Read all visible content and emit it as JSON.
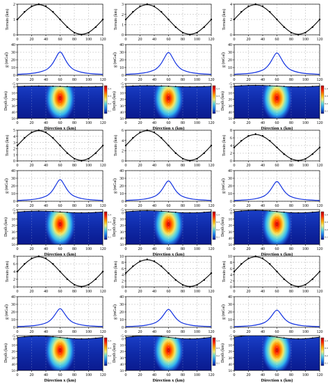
{
  "chart_data": {
    "type": "line",
    "terrain_ylabel": "Terrain  (km)",
    "gravity_ylabel": "g (mGal)",
    "depth_ylabel": "Depth (km)",
    "xlabel": "Direction x (km)",
    "x_ticks": [
      "0",
      "20",
      "40",
      "60",
      "80",
      "100",
      "120"
    ],
    "xlim": [
      0,
      120
    ],
    "gravity_ticks": [
      "0",
      "10",
      "20",
      "30",
      "40"
    ],
    "gravity_ylim": [
      0,
      40
    ],
    "depth_ticks": [
      "-5",
      "0",
      "10",
      "20",
      "30",
      "40",
      "50"
    ],
    "depth_ylim": [
      -5,
      50
    ],
    "colorbar_ticks": [
      "0.4",
      "0.3",
      "0.2",
      "0.1"
    ],
    "colors": {
      "terrain_line": "#000000",
      "gravity_line": "#1030e0",
      "density_low": "#0a1a8f",
      "density_high": "#cc0000",
      "grid": "#b0b0b0"
    },
    "panels": [
      {
        "amplitude": 1,
        "terrain_ylim": [
          0,
          2
        ],
        "terrain_ticks": [
          "0",
          "1",
          "2"
        ],
        "terrain": {
          "x": [
            0,
            10,
            20,
            30,
            40,
            50,
            60,
            70,
            80,
            90,
            100,
            110,
            120
          ],
          "y": [
            1.0,
            1.5,
            1.87,
            2.0,
            1.87,
            1.5,
            1.0,
            0.5,
            0.13,
            0.0,
            0.13,
            0.5,
            1.0
          ]
        },
        "gravity": {
          "x": [
            0,
            10,
            20,
            30,
            40,
            45,
            50,
            55,
            58,
            60,
            62,
            65,
            70,
            75,
            80,
            90,
            100,
            110,
            120
          ],
          "y": [
            1.2,
            1.6,
            2.3,
            3.6,
            6.7,
            10.0,
            15.7,
            24.4,
            29.4,
            30.5,
            29.4,
            24.4,
            15.7,
            10.0,
            6.7,
            3.6,
            2.3,
            1.6,
            1.2
          ]
        }
      },
      {
        "amplitude": 1.5,
        "terrain_ylim": [
          0,
          3
        ],
        "terrain_ticks": [
          "0",
          "1",
          "2",
          "3"
        ],
        "terrain": {
          "x": [
            0,
            10,
            20,
            30,
            40,
            50,
            60,
            70,
            80,
            90,
            100,
            110,
            120
          ],
          "y": [
            1.5,
            2.25,
            2.8,
            3.0,
            2.8,
            2.25,
            1.5,
            0.75,
            0.2,
            0.0,
            0.2,
            0.75,
            1.5
          ]
        },
        "gravity": {
          "x": [
            0,
            10,
            20,
            30,
            40,
            45,
            50,
            55,
            58,
            60,
            62,
            65,
            70,
            75,
            80,
            90,
            100,
            110,
            120
          ],
          "y": [
            1.2,
            1.6,
            2.3,
            3.6,
            6.6,
            9.8,
            15.4,
            23.9,
            28.8,
            29.9,
            28.8,
            23.9,
            15.4,
            9.8,
            6.6,
            3.6,
            2.3,
            1.6,
            1.2
          ]
        }
      },
      {
        "amplitude": 2,
        "terrain_ylim": [
          0,
          4
        ],
        "terrain_ticks": [
          "0",
          "2",
          "4"
        ],
        "terrain": {
          "x": [
            0,
            10,
            20,
            30,
            40,
            50,
            60,
            70,
            80,
            90,
            100,
            110,
            120
          ],
          "y": [
            2.0,
            3.0,
            3.73,
            4.0,
            3.73,
            3.0,
            2.0,
            1.0,
            0.27,
            0.0,
            0.27,
            1.0,
            2.0
          ]
        },
        "gravity": {
          "x": [
            0,
            10,
            20,
            30,
            40,
            45,
            50,
            55,
            58,
            60,
            62,
            65,
            70,
            75,
            80,
            90,
            100,
            110,
            120
          ],
          "y": [
            1.2,
            1.6,
            2.2,
            3.5,
            6.5,
            9.6,
            15.1,
            23.4,
            28.2,
            29.3,
            28.2,
            23.4,
            15.1,
            9.6,
            6.5,
            3.5,
            2.2,
            1.6,
            1.2
          ]
        }
      },
      {
        "amplitude": 2.5,
        "terrain_ylim": [
          0,
          5
        ],
        "terrain_ticks": [
          "0",
          "1",
          "2",
          "3",
          "4",
          "5"
        ],
        "terrain": {
          "x": [
            0,
            10,
            20,
            30,
            40,
            50,
            60,
            70,
            80,
            90,
            100,
            110,
            120
          ],
          "y": [
            2.5,
            3.75,
            4.67,
            5.0,
            4.67,
            3.75,
            2.5,
            1.25,
            0.33,
            0.0,
            0.33,
            1.25,
            2.5
          ]
        },
        "gravity": {
          "x": [
            0,
            10,
            20,
            30,
            40,
            45,
            50,
            55,
            58,
            60,
            62,
            65,
            70,
            75,
            80,
            90,
            100,
            110,
            120
          ],
          "y": [
            1.1,
            1.5,
            2.2,
            3.4,
            6.3,
            9.3,
            14.6,
            22.7,
            27.3,
            28.4,
            27.3,
            22.7,
            14.6,
            9.3,
            6.3,
            3.4,
            2.2,
            1.5,
            1.1
          ]
        }
      },
      {
        "amplitude": 3,
        "terrain_ylim": [
          0,
          6
        ],
        "terrain_ticks": [
          "0",
          "2",
          "4",
          "6"
        ],
        "terrain": {
          "x": [
            0,
            10,
            20,
            30,
            40,
            50,
            60,
            70,
            80,
            90,
            100,
            110,
            120
          ],
          "y": [
            3.0,
            4.5,
            5.6,
            6.0,
            5.6,
            4.5,
            3.0,
            1.5,
            0.4,
            0.0,
            0.4,
            1.5,
            3.0
          ]
        },
        "gravity": {
          "x": [
            0,
            10,
            20,
            30,
            40,
            45,
            50,
            55,
            58,
            60,
            62,
            65,
            70,
            75,
            80,
            90,
            100,
            110,
            120
          ],
          "y": [
            1.1,
            1.5,
            2.1,
            3.2,
            6.0,
            8.8,
            13.8,
            21.4,
            25.7,
            26.7,
            25.7,
            21.4,
            13.8,
            8.8,
            6.0,
            3.2,
            2.1,
            1.5,
            1.1
          ]
        }
      },
      {
        "amplitude": 3.5,
        "terrain_ylim": [
          0,
          8
        ],
        "terrain_ticks": [
          "0",
          "2",
          "4",
          "6",
          "8"
        ],
        "terrain": {
          "x": [
            0,
            10,
            20,
            30,
            40,
            50,
            60,
            70,
            80,
            90,
            100,
            110,
            120
          ],
          "y": [
            3.5,
            5.25,
            6.53,
            7.0,
            6.53,
            5.25,
            3.5,
            1.75,
            0.47,
            0.0,
            0.47,
            1.75,
            3.5
          ]
        },
        "gravity": {
          "x": [
            0,
            10,
            20,
            30,
            40,
            45,
            50,
            55,
            58,
            60,
            62,
            65,
            70,
            75,
            80,
            90,
            100,
            110,
            120
          ],
          "y": [
            1.0,
            1.4,
            2.0,
            3.1,
            5.7,
            8.5,
            13.3,
            20.7,
            24.9,
            25.9,
            24.9,
            20.7,
            13.3,
            8.5,
            5.7,
            3.1,
            2.0,
            1.4,
            1.0
          ]
        }
      },
      {
        "amplitude": 4,
        "terrain_ylim": [
          0,
          8
        ],
        "terrain_ticks": [
          "0",
          "2",
          "4",
          "6",
          "8"
        ],
        "terrain": {
          "x": [
            0,
            10,
            20,
            30,
            40,
            50,
            60,
            70,
            80,
            90,
            100,
            110,
            120
          ],
          "y": [
            4.0,
            6.0,
            7.46,
            8.0,
            7.46,
            6.0,
            4.0,
            2.0,
            0.54,
            0.0,
            0.54,
            2.0,
            4.0
          ]
        },
        "gravity": {
          "x": [
            0,
            10,
            20,
            30,
            40,
            45,
            50,
            55,
            58,
            60,
            62,
            65,
            70,
            75,
            80,
            90,
            100,
            110,
            120
          ],
          "y": [
            1.0,
            1.3,
            1.9,
            2.9,
            5.4,
            8.0,
            12.6,
            19.6,
            23.5,
            24.5,
            23.5,
            19.6,
            12.6,
            8.0,
            5.4,
            2.9,
            1.9,
            1.3,
            1.0
          ]
        }
      },
      {
        "amplitude": 4.5,
        "terrain_ylim": [
          0,
          10
        ],
        "terrain_ticks": [
          "0",
          "2",
          "4",
          "6",
          "8",
          "10"
        ],
        "terrain": {
          "x": [
            0,
            10,
            20,
            30,
            40,
            50,
            60,
            70,
            80,
            90,
            100,
            110,
            120
          ],
          "y": [
            4.5,
            6.75,
            8.4,
            9.0,
            8.4,
            6.75,
            4.5,
            2.25,
            0.6,
            0.0,
            0.6,
            2.25,
            4.5
          ]
        },
        "gravity": {
          "x": [
            0,
            10,
            20,
            30,
            40,
            45,
            50,
            55,
            58,
            60,
            62,
            65,
            70,
            75,
            80,
            90,
            100,
            110,
            120
          ],
          "y": [
            0.9,
            1.3,
            1.8,
            2.8,
            5.2,
            7.7,
            12.1,
            18.8,
            22.6,
            23.5,
            22.6,
            18.8,
            12.1,
            7.7,
            5.2,
            2.8,
            1.8,
            1.3,
            0.9
          ]
        }
      },
      {
        "amplitude": 5,
        "terrain_ylim": [
          0,
          10
        ],
        "terrain_ticks": [
          "0",
          "2",
          "4",
          "6",
          "8",
          "10"
        ],
        "terrain": {
          "x": [
            0,
            10,
            20,
            30,
            40,
            50,
            60,
            70,
            80,
            90,
            100,
            110,
            120
          ],
          "y": [
            5.0,
            7.5,
            9.33,
            10.0,
            9.33,
            7.5,
            5.0,
            2.5,
            0.67,
            0.0,
            0.67,
            2.5,
            5.0
          ]
        },
        "gravity": {
          "x": [
            0,
            10,
            20,
            30,
            40,
            45,
            50,
            55,
            58,
            60,
            62,
            65,
            70,
            75,
            80,
            90,
            100,
            110,
            120
          ],
          "y": [
            0.9,
            1.2,
            1.7,
            2.7,
            5.0,
            7.4,
            11.6,
            18.0,
            21.7,
            22.6,
            21.7,
            18.0,
            11.6,
            7.4,
            5.0,
            2.7,
            1.7,
            1.2,
            0.9
          ]
        }
      }
    ]
  }
}
